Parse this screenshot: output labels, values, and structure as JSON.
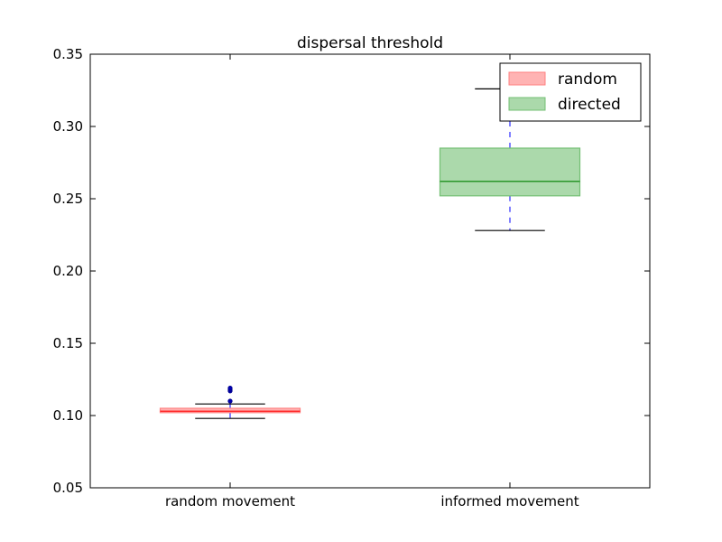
{
  "chart_data": {
    "type": "box",
    "title": "dispersal threshold",
    "xlabel": "",
    "ylabel": "",
    "ylim": [
      0.05,
      0.35
    ],
    "yticks": [
      0.05,
      0.1,
      0.15,
      0.2,
      0.25,
      0.3,
      0.35
    ],
    "ytick_labels": [
      "0.05",
      "0.10",
      "0.15",
      "0.20",
      "0.25",
      "0.30",
      "0.35"
    ],
    "categories": [
      "random movement",
      "informed movement"
    ],
    "legend_position": "top-right",
    "grid": false,
    "series": [
      {
        "name": "random",
        "category": "random movement",
        "color": "#ff8080",
        "median_color": "#ff0000",
        "whisker_low": 0.098,
        "q1": 0.102,
        "median": 0.103,
        "q3": 0.105,
        "whisker_high": 0.108,
        "outliers": [
          0.11,
          0.117,
          0.118,
          0.119
        ]
      },
      {
        "name": "directed",
        "category": "informed movement",
        "color": "#73bf73",
        "median_color": "#008000",
        "whisker_low": 0.228,
        "q1": 0.252,
        "median": 0.262,
        "q3": 0.285,
        "whisker_high": 0.326,
        "outliers": []
      }
    ]
  }
}
